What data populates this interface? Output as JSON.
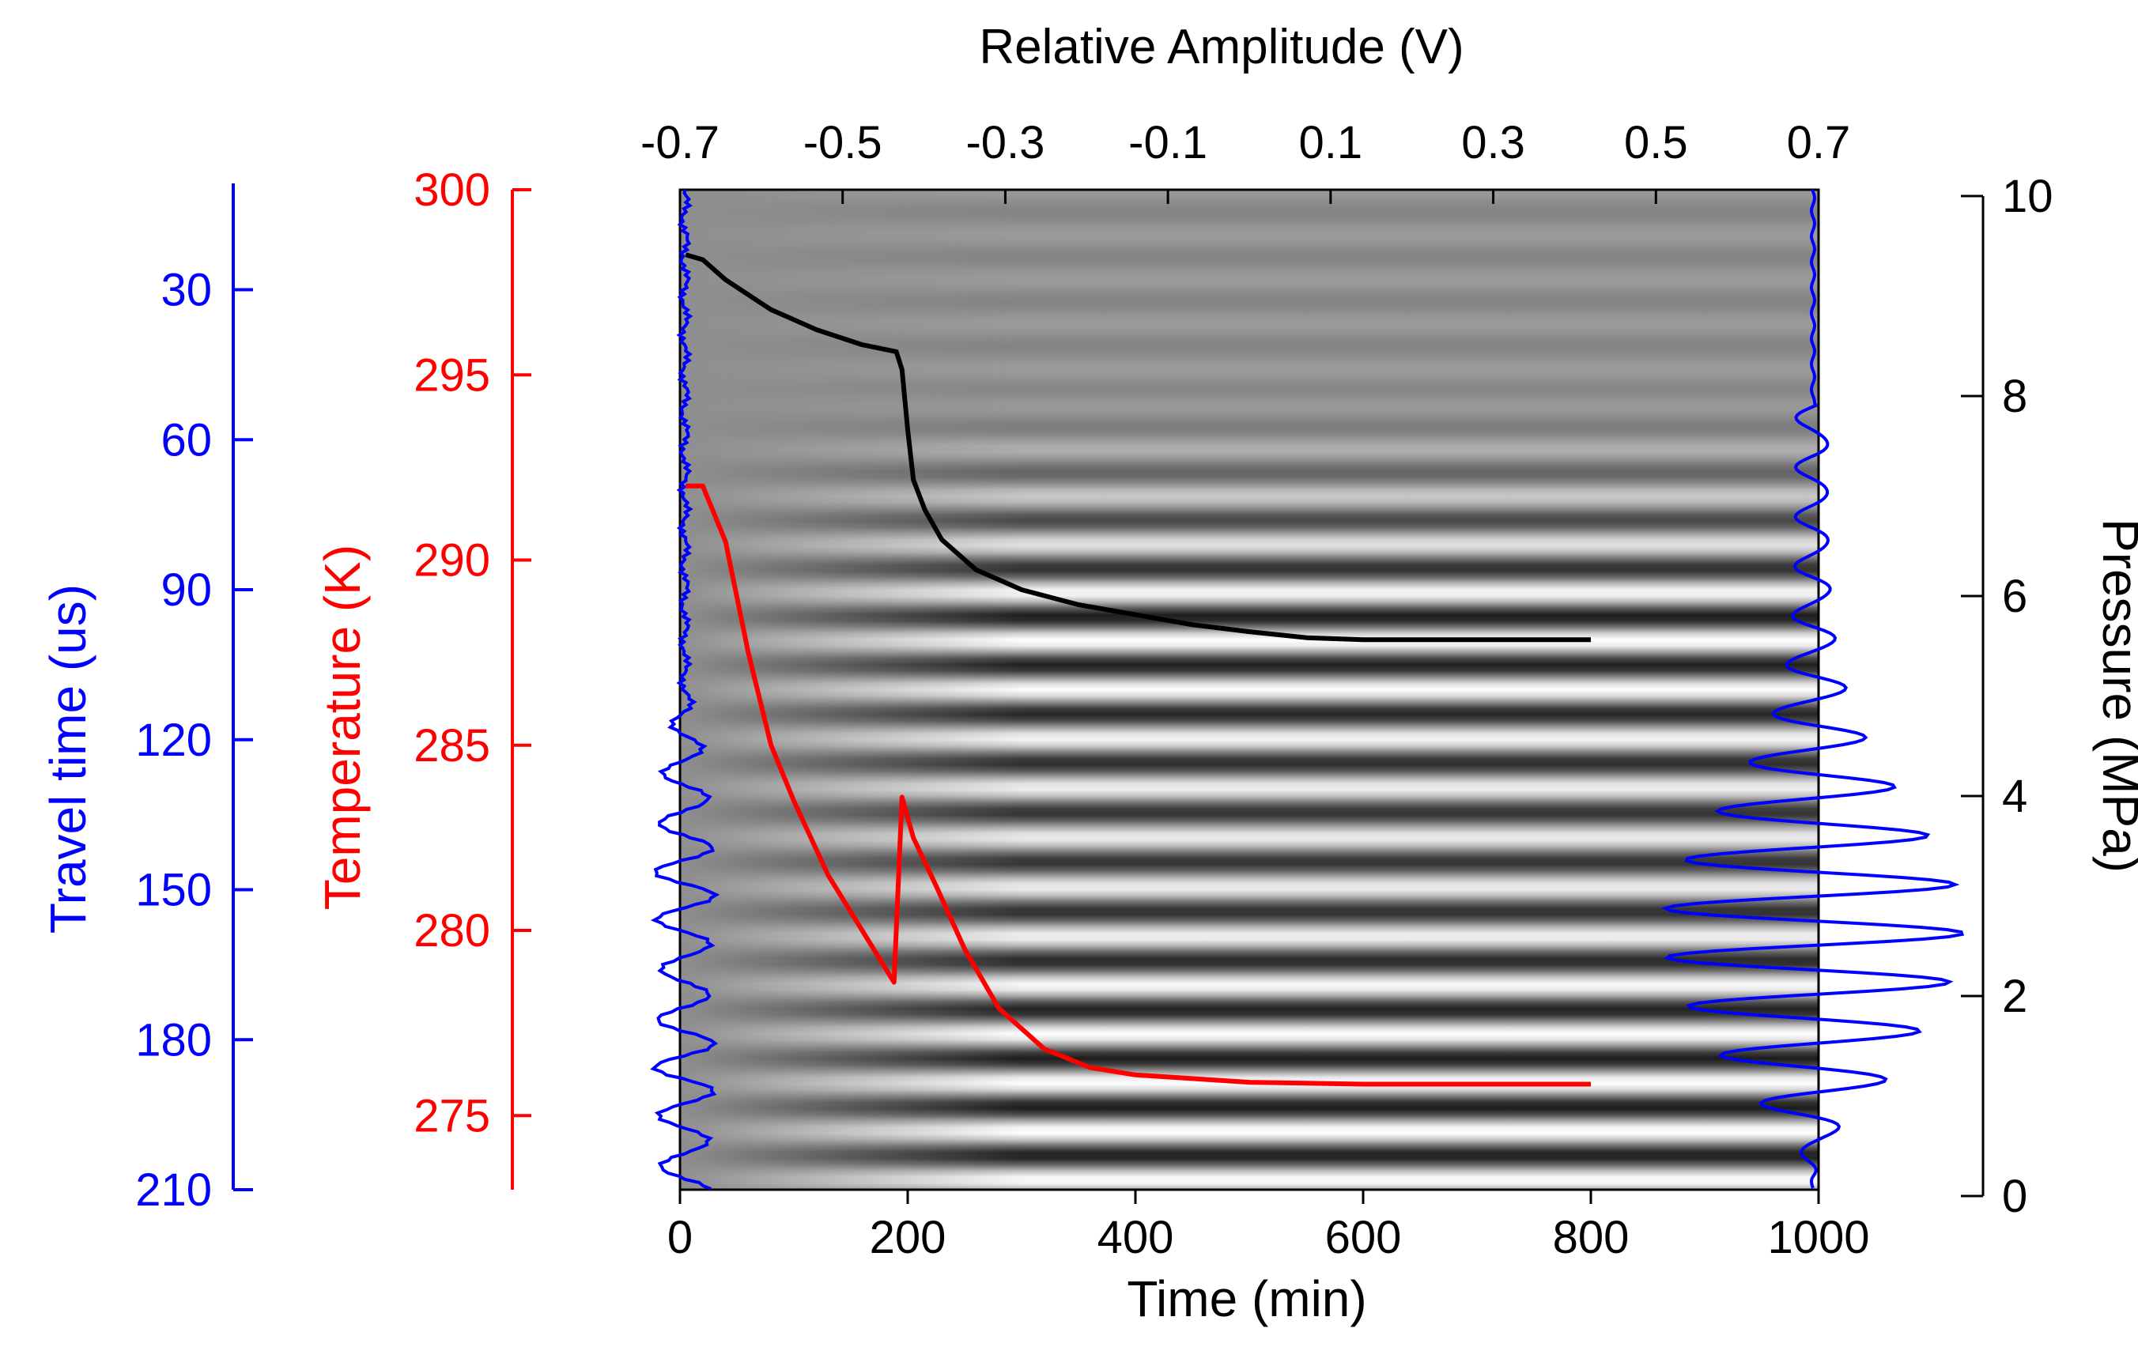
{
  "chart_data": {
    "type": "line",
    "title": "",
    "background": "seismic waterfall (grayscale) of recorded waveforms vs time",
    "x_bottom": {
      "label": "Time (min)",
      "range": [
        0,
        1000
      ],
      "ticks": [
        0,
        200,
        400,
        600,
        800,
        1000
      ]
    },
    "x_top": {
      "label": "Relative Amplitude (V)",
      "range": [
        -0.7,
        0.7
      ],
      "ticks": [
        "-0.7",
        "-0.5",
        "-0.3",
        "-0.1",
        "0.1",
        "0.3",
        "0.5",
        "0.7"
      ]
    },
    "y_travel": {
      "label": "Travel time (us)",
      "range": [
        210,
        10
      ],
      "ticks": [
        30,
        60,
        90,
        120,
        150,
        180,
        210
      ],
      "color": "#0000ff"
    },
    "y_temperature": {
      "label": "Temperature (K)",
      "range": [
        273,
        300
      ],
      "ticks": [
        275,
        280,
        285,
        290,
        295,
        300
      ],
      "color": "#ff0000"
    },
    "y_pressure": {
      "label": "Pressure (MPa)",
      "range": [
        0,
        10
      ],
      "ticks": [
        0,
        2,
        4,
        6,
        8,
        10
      ],
      "color": "#000000"
    },
    "series": [
      {
        "name": "Pressure",
        "axis": "pressure",
        "color": "#000000",
        "points": [
          [
            5,
            9.35
          ],
          [
            20,
            9.3
          ],
          [
            40,
            9.1
          ],
          [
            80,
            8.8
          ],
          [
            120,
            8.6
          ],
          [
            160,
            8.45
          ],
          [
            190,
            8.38
          ],
          [
            195,
            8.2
          ],
          [
            200,
            7.6
          ],
          [
            205,
            7.1
          ],
          [
            215,
            6.8
          ],
          [
            230,
            6.5
          ],
          [
            260,
            6.2
          ],
          [
            300,
            6.0
          ],
          [
            350,
            5.85
          ],
          [
            400,
            5.75
          ],
          [
            450,
            5.65
          ],
          [
            500,
            5.58
          ],
          [
            550,
            5.52
          ],
          [
            600,
            5.5
          ],
          [
            700,
            5.5
          ],
          [
            800,
            5.5
          ]
        ]
      },
      {
        "name": "Temperature",
        "axis": "temperature",
        "color": "#ff0000",
        "points": [
          [
            5,
            292.0
          ],
          [
            20,
            292.0
          ],
          [
            40,
            290.5
          ],
          [
            60,
            287.5
          ],
          [
            80,
            285.0
          ],
          [
            100,
            283.5
          ],
          [
            130,
            281.5
          ],
          [
            160,
            280.0
          ],
          [
            188,
            278.6
          ],
          [
            195,
            283.6
          ],
          [
            205,
            282.5
          ],
          [
            225,
            281.2
          ],
          [
            250,
            279.5
          ],
          [
            280,
            277.9
          ],
          [
            320,
            276.8
          ],
          [
            360,
            276.3
          ],
          [
            400,
            276.1
          ],
          [
            500,
            275.9
          ],
          [
            600,
            275.85
          ],
          [
            800,
            275.85
          ]
        ]
      }
    ],
    "waveform_left": {
      "name": "initial waveform",
      "color": "#0000ff"
    },
    "waveform_right": {
      "name": "final waveform",
      "color": "#0000ff"
    }
  }
}
